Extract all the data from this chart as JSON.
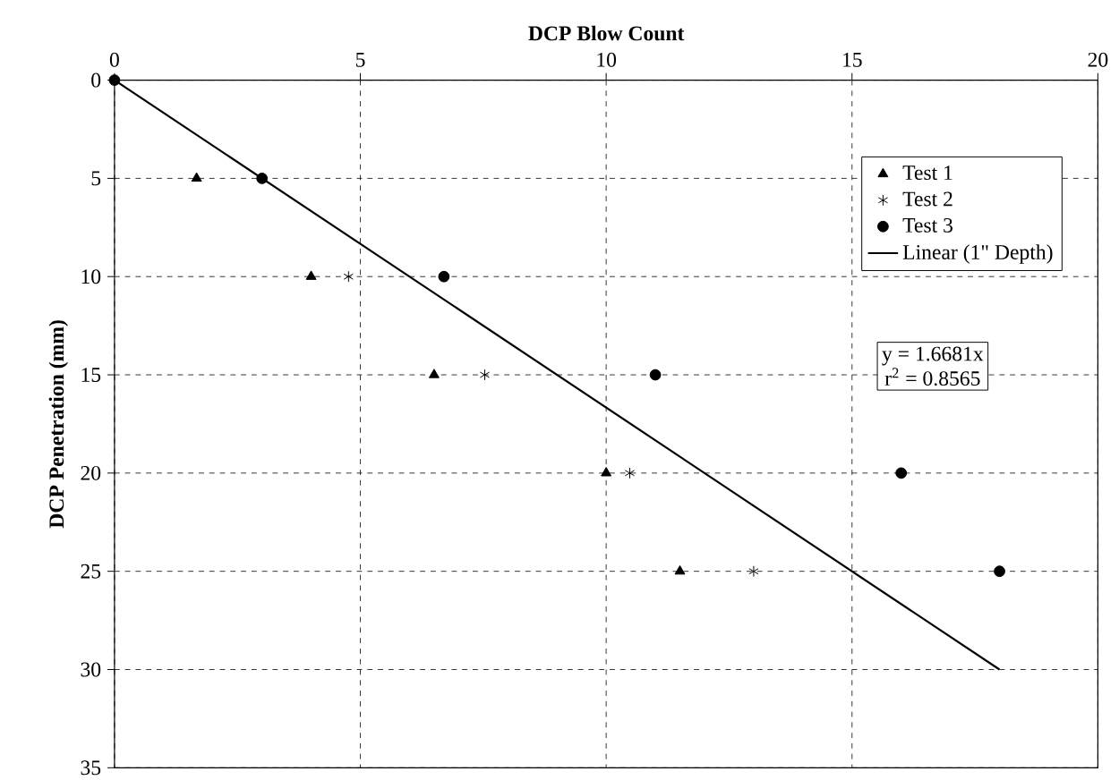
{
  "chart_data": {
    "type": "scatter",
    "xlabel": "DCP Blow Count",
    "ylabel": "DCP Penetration (mm)",
    "xlim": [
      0,
      20
    ],
    "xticks": [
      0,
      5,
      10,
      15,
      20
    ],
    "ylim": [
      35,
      0
    ],
    "yticks": [
      0,
      5,
      10,
      15,
      20,
      25,
      30,
      35
    ],
    "grid": true,
    "legend": "top right",
    "series": [
      {
        "name": "Test 1",
        "color": "#000000",
        "marker": "triangle",
        "x": [
          1.67,
          4,
          6.5,
          10,
          11.5
        ],
        "values": [
          5,
          10,
          15,
          20,
          25
        ]
      },
      {
        "name": "Test 2",
        "color": "#000000",
        "marker": "cross",
        "x": [
          4.76,
          7.53,
          10.48,
          13
        ],
        "values": [
          10,
          15,
          20,
          25
        ]
      },
      {
        "name": "Test 3",
        "color": "#000000",
        "marker": "circle",
        "x": [
          0,
          3,
          6.7,
          11,
          16,
          18
        ],
        "values": [
          0,
          5,
          10,
          15,
          20,
          25
        ]
      },
      {
        "name": "Linear (1\" Depth)",
        "type": "line",
        "color": "#000000",
        "marker": "none",
        "line_style": "solid",
        "x": [
          0,
          18
        ],
        "values": [
          0,
          30
        ]
      }
    ],
    "annotations": [
      "y = 1.6681x",
      "r$^{2}$ = 0.8565"
    ]
  }
}
